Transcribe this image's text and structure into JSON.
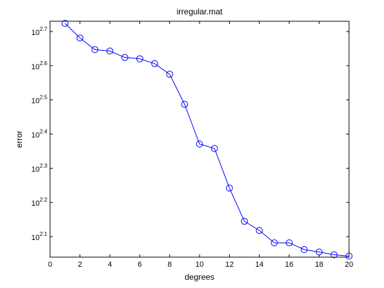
{
  "chart_data": {
    "type": "line",
    "title": "irregular.mat",
    "xlabel": "degrees",
    "ylabel": "error",
    "y_scale": "log10",
    "xlim": [
      0,
      20
    ],
    "ylim_log10": [
      2.04,
      2.73
    ],
    "x_ticks": [
      0,
      2,
      4,
      6,
      8,
      10,
      12,
      14,
      16,
      18,
      20
    ],
    "y_ticks": [
      {
        "base": "10",
        "exp": "2.1",
        "value": 2.1
      },
      {
        "base": "10",
        "exp": "2.2",
        "value": 2.2
      },
      {
        "base": "10",
        "exp": "2.3",
        "value": 2.3
      },
      {
        "base": "10",
        "exp": "2.4",
        "value": 2.4
      },
      {
        "base": "10",
        "exp": "2.5",
        "value": 2.5
      },
      {
        "base": "10",
        "exp": "2.6",
        "value": 2.6
      },
      {
        "base": "10",
        "exp": "2.7",
        "value": 2.7
      }
    ],
    "grid": false,
    "legend": "none",
    "series": [
      {
        "color": "#0000ff",
        "marker": "circle",
        "x": [
          1,
          2,
          3,
          4,
          5,
          6,
          7,
          8,
          9,
          10,
          11,
          12,
          13,
          14,
          15,
          16,
          17,
          18,
          19,
          20
        ],
        "y_log10": [
          2.724,
          2.681,
          2.647,
          2.643,
          2.624,
          2.62,
          2.606,
          2.575,
          2.487,
          2.371,
          2.358,
          2.242,
          2.145,
          2.118,
          2.082,
          2.082,
          2.062,
          2.055,
          2.047,
          2.043
        ],
        "y": [
          529.7,
          479.7,
          443.6,
          439.5,
          420.7,
          416.9,
          403.6,
          375.8,
          306.9,
          235.0,
          228.0,
          174.6,
          139.6,
          131.2,
          120.8,
          120.8,
          115.3,
          113.5,
          111.4,
          110.4
        ]
      }
    ]
  }
}
